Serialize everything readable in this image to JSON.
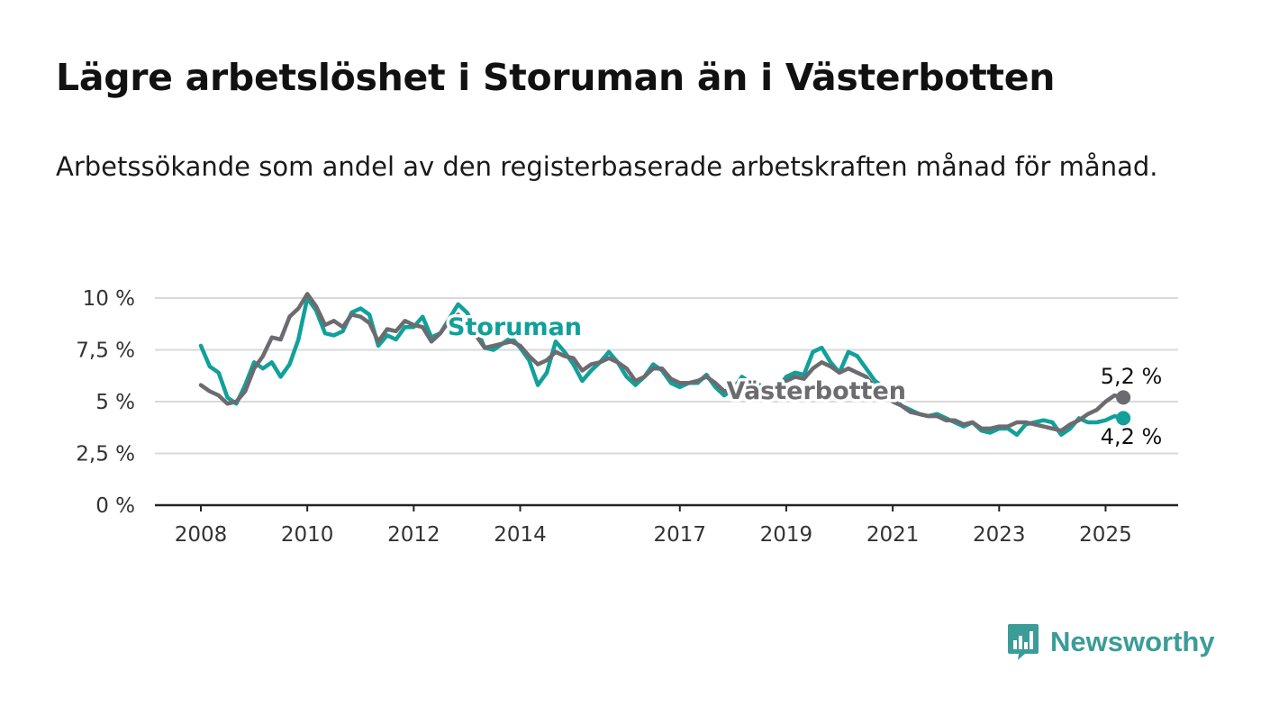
{
  "chart_data": {
    "type": "line",
    "title": "Lägre arbetslöshet i Storuman än i Västerbotten",
    "subtitle": "Arbetssökande som andel av den registerbaserade arbetskraften månad för månad.",
    "xlabel": "",
    "ylabel": "",
    "x_ticks": [
      "2008",
      "2010",
      "2012",
      "2014",
      "2017",
      "2019",
      "2021",
      "2023",
      "2025"
    ],
    "y_ticks": [
      "0 %",
      "2,5 %",
      "5 %",
      "7,5 %",
      "10 %"
    ],
    "ylim": [
      0,
      10
    ],
    "grid": true,
    "legend": "none",
    "series": [
      {
        "name": "Storuman",
        "color": "#11a09a",
        "points": [
          [
            "2008-01",
            7.7
          ],
          [
            "2008-03",
            6.7
          ],
          [
            "2008-05",
            6.4
          ],
          [
            "2008-07",
            5.2
          ],
          [
            "2008-09",
            4.9
          ],
          [
            "2008-11",
            5.8
          ],
          [
            "2009-01",
            6.9
          ],
          [
            "2009-03",
            6.6
          ],
          [
            "2009-05",
            6.9
          ],
          [
            "2009-07",
            6.2
          ],
          [
            "2009-09",
            6.8
          ],
          [
            "2009-11",
            8.0
          ],
          [
            "2010-01",
            10.0
          ],
          [
            "2010-03",
            9.4
          ],
          [
            "2010-05",
            8.3
          ],
          [
            "2010-07",
            8.2
          ],
          [
            "2010-09",
            8.4
          ],
          [
            "2010-11",
            9.3
          ],
          [
            "2011-01",
            9.5
          ],
          [
            "2011-03",
            9.2
          ],
          [
            "2011-05",
            7.7
          ],
          [
            "2011-07",
            8.2
          ],
          [
            "2011-09",
            8.0
          ],
          [
            "2011-11",
            8.6
          ],
          [
            "2012-01",
            8.6
          ],
          [
            "2012-03",
            9.1
          ],
          [
            "2012-05",
            8.1
          ],
          [
            "2012-07",
            8.3
          ],
          [
            "2012-09",
            9.0
          ],
          [
            "2012-11",
            9.7
          ],
          [
            "2013-01",
            9.3
          ],
          [
            "2013-03",
            8.6
          ],
          [
            "2013-05",
            7.6
          ],
          [
            "2013-07",
            7.5
          ],
          [
            "2013-09",
            7.8
          ],
          [
            "2013-11",
            8.1
          ],
          [
            "2014-01",
            7.6
          ],
          [
            "2014-03",
            7.0
          ],
          [
            "2014-05",
            5.8
          ],
          [
            "2014-07",
            6.4
          ],
          [
            "2014-09",
            7.9
          ],
          [
            "2014-11",
            7.4
          ],
          [
            "2015-01",
            6.8
          ],
          [
            "2015-03",
            6.0
          ],
          [
            "2015-05",
            6.5
          ],
          [
            "2015-07",
            6.9
          ],
          [
            "2015-09",
            7.4
          ],
          [
            "2015-11",
            6.9
          ],
          [
            "2016-01",
            6.2
          ],
          [
            "2016-03",
            5.8
          ],
          [
            "2016-05",
            6.2
          ],
          [
            "2016-07",
            6.8
          ],
          [
            "2016-09",
            6.5
          ],
          [
            "2016-11",
            5.9
          ],
          [
            "2017-01",
            5.7
          ],
          [
            "2017-03",
            5.9
          ],
          [
            "2017-05",
            5.9
          ],
          [
            "2017-07",
            6.3
          ],
          [
            "2017-09",
            5.7
          ],
          [
            "2017-11",
            5.3
          ],
          [
            "2018-01",
            5.6
          ],
          [
            "2018-03",
            6.2
          ],
          [
            "2018-05",
            5.9
          ],
          [
            "2018-07",
            5.8
          ],
          [
            "2018-09",
            5.5
          ],
          [
            "2018-11",
            5.6
          ],
          [
            "2019-01",
            6.2
          ],
          [
            "2019-03",
            6.4
          ],
          [
            "2019-05",
            6.3
          ],
          [
            "2019-07",
            7.4
          ],
          [
            "2019-09",
            7.6
          ],
          [
            "2019-11",
            6.9
          ],
          [
            "2020-01",
            6.4
          ],
          [
            "2020-03",
            7.4
          ],
          [
            "2020-05",
            7.2
          ],
          [
            "2020-07",
            6.6
          ],
          [
            "2020-09",
            6.0
          ],
          [
            "2020-11",
            5.7
          ],
          [
            "2021-01",
            5.2
          ],
          [
            "2021-03",
            4.8
          ],
          [
            "2021-05",
            4.6
          ],
          [
            "2021-07",
            4.4
          ],
          [
            "2021-09",
            4.3
          ],
          [
            "2021-11",
            4.4
          ],
          [
            "2022-01",
            4.2
          ],
          [
            "2022-03",
            4.0
          ],
          [
            "2022-05",
            3.8
          ],
          [
            "2022-07",
            4.0
          ],
          [
            "2022-09",
            3.6
          ],
          [
            "2022-11",
            3.5
          ],
          [
            "2023-01",
            3.7
          ],
          [
            "2023-03",
            3.7
          ],
          [
            "2023-05",
            3.4
          ],
          [
            "2023-07",
            3.9
          ],
          [
            "2023-09",
            4.0
          ],
          [
            "2023-11",
            4.1
          ],
          [
            "2024-01",
            4.0
          ],
          [
            "2024-03",
            3.4
          ],
          [
            "2024-05",
            3.7
          ],
          [
            "2024-07",
            4.2
          ],
          [
            "2024-09",
            4.0
          ],
          [
            "2024-11",
            4.0
          ],
          [
            "2025-01",
            4.1
          ],
          [
            "2025-03",
            4.3
          ],
          [
            "2025-05",
            4.2
          ]
        ]
      },
      {
        "name": "Västerbotten",
        "color": "#6c6b70",
        "points": [
          [
            "2008-01",
            5.8
          ],
          [
            "2008-03",
            5.5
          ],
          [
            "2008-05",
            5.3
          ],
          [
            "2008-07",
            4.9
          ],
          [
            "2008-09",
            5.0
          ],
          [
            "2008-11",
            5.5
          ],
          [
            "2009-01",
            6.6
          ],
          [
            "2009-03",
            7.2
          ],
          [
            "2009-05",
            8.1
          ],
          [
            "2009-07",
            8.0
          ],
          [
            "2009-09",
            9.1
          ],
          [
            "2009-11",
            9.5
          ],
          [
            "2010-01",
            10.2
          ],
          [
            "2010-03",
            9.6
          ],
          [
            "2010-05",
            8.7
          ],
          [
            "2010-07",
            8.9
          ],
          [
            "2010-09",
            8.6
          ],
          [
            "2010-11",
            9.2
          ],
          [
            "2011-01",
            9.1
          ],
          [
            "2011-03",
            8.8
          ],
          [
            "2011-05",
            7.9
          ],
          [
            "2011-07",
            8.5
          ],
          [
            "2011-09",
            8.4
          ],
          [
            "2011-11",
            8.9
          ],
          [
            "2012-01",
            8.7
          ],
          [
            "2012-03",
            8.6
          ],
          [
            "2012-05",
            7.9
          ],
          [
            "2012-07",
            8.3
          ],
          [
            "2012-09",
            8.9
          ],
          [
            "2012-11",
            9.2
          ],
          [
            "2013-01",
            8.6
          ],
          [
            "2013-03",
            8.2
          ],
          [
            "2013-05",
            7.6
          ],
          [
            "2013-07",
            7.7
          ],
          [
            "2013-09",
            7.8
          ],
          [
            "2013-11",
            7.9
          ],
          [
            "2014-01",
            7.7
          ],
          [
            "2014-03",
            7.2
          ],
          [
            "2014-05",
            6.8
          ],
          [
            "2014-07",
            7.0
          ],
          [
            "2014-09",
            7.4
          ],
          [
            "2014-11",
            7.2
          ],
          [
            "2015-01",
            7.1
          ],
          [
            "2015-03",
            6.5
          ],
          [
            "2015-05",
            6.8
          ],
          [
            "2015-07",
            6.9
          ],
          [
            "2015-09",
            7.1
          ],
          [
            "2015-11",
            6.9
          ],
          [
            "2016-01",
            6.6
          ],
          [
            "2016-03",
            6.0
          ],
          [
            "2016-05",
            6.2
          ],
          [
            "2016-07",
            6.6
          ],
          [
            "2016-09",
            6.6
          ],
          [
            "2016-11",
            6.1
          ],
          [
            "2017-01",
            5.9
          ],
          [
            "2017-03",
            5.9
          ],
          [
            "2017-05",
            6.0
          ],
          [
            "2017-07",
            6.2
          ],
          [
            "2017-09",
            5.9
          ],
          [
            "2017-11",
            5.5
          ],
          [
            "2018-01",
            5.6
          ],
          [
            "2018-03",
            5.9
          ],
          [
            "2018-05",
            5.7
          ],
          [
            "2018-07",
            5.7
          ],
          [
            "2018-09",
            5.7
          ],
          [
            "2018-11",
            5.8
          ],
          [
            "2019-01",
            6.0
          ],
          [
            "2019-03",
            6.2
          ],
          [
            "2019-05",
            6.1
          ],
          [
            "2019-07",
            6.6
          ],
          [
            "2019-09",
            6.9
          ],
          [
            "2019-11",
            6.7
          ],
          [
            "2020-01",
            6.4
          ],
          [
            "2020-03",
            6.6
          ],
          [
            "2020-05",
            6.4
          ],
          [
            "2020-07",
            6.2
          ],
          [
            "2020-09",
            5.7
          ],
          [
            "2020-11",
            5.4
          ],
          [
            "2021-01",
            5.0
          ],
          [
            "2021-03",
            4.8
          ],
          [
            "2021-05",
            4.5
          ],
          [
            "2021-07",
            4.4
          ],
          [
            "2021-09",
            4.3
          ],
          [
            "2021-11",
            4.3
          ],
          [
            "2022-01",
            4.1
          ],
          [
            "2022-03",
            4.1
          ],
          [
            "2022-05",
            3.9
          ],
          [
            "2022-07",
            4.0
          ],
          [
            "2022-09",
            3.7
          ],
          [
            "2022-11",
            3.7
          ],
          [
            "2023-01",
            3.8
          ],
          [
            "2023-03",
            3.8
          ],
          [
            "2023-05",
            4.0
          ],
          [
            "2023-07",
            4.0
          ],
          [
            "2023-09",
            3.9
          ],
          [
            "2023-11",
            3.8
          ],
          [
            "2024-01",
            3.7
          ],
          [
            "2024-03",
            3.6
          ],
          [
            "2024-05",
            3.9
          ],
          [
            "2024-07",
            4.1
          ],
          [
            "2024-09",
            4.4
          ],
          [
            "2024-11",
            4.6
          ],
          [
            "2025-01",
            5.0
          ],
          [
            "2025-03",
            5.3
          ],
          [
            "2025-05",
            5.2
          ]
        ]
      }
    ],
    "end_labels": [
      "5,2 %",
      "4,2 %"
    ]
  },
  "brand": {
    "name": "Newsworthy",
    "color": "#3b9c98",
    "icon": "bar-chart-speech-bubble-icon"
  }
}
